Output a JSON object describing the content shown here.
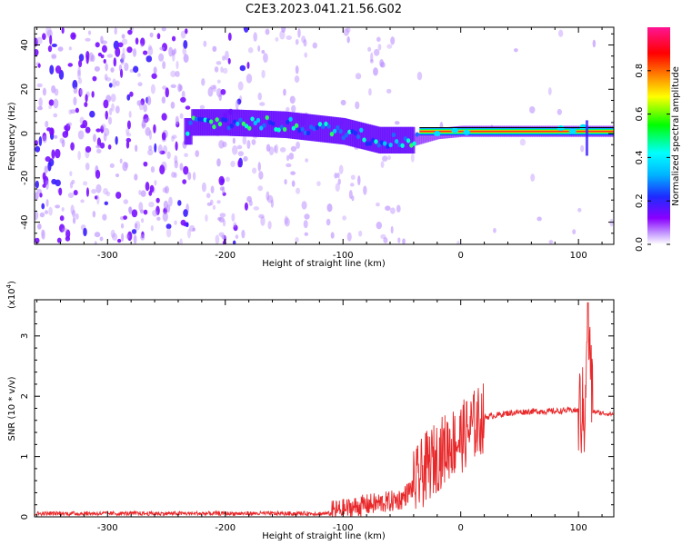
{
  "title": "C2E3.2023.041.21.56.G02",
  "colors": {
    "snr_line": "#e8282a",
    "frame": "#000000"
  },
  "chart_data": [
    {
      "type": "heatmap",
      "xlabel": "Height of straight line (km)",
      "ylabel": "Frequency (Hz)",
      "xlim": [
        -362,
        130
      ],
      "ylim": [
        -50,
        48
      ],
      "xticks": [
        -300,
        -200,
        -100,
        0,
        100
      ],
      "yticks": [
        -40,
        -20,
        0,
        20,
        40
      ],
      "colorbar": {
        "label": "Normalized spectral amplitude",
        "range": [
          0,
          1
        ],
        "ticks": [
          "0.0",
          "0.2",
          "0.4",
          "0.6",
          "0.8"
        ],
        "colormap": [
          "#ffffff",
          "#8a00ff",
          "#1d2bff",
          "#00ffff",
          "#00ff00",
          "#ffff00",
          "#ff8000",
          "#ff0000",
          "#ff1493"
        ]
      },
      "ridge": [
        {
          "x": -230,
          "f": 5
        },
        {
          "x": -200,
          "f": 5
        },
        {
          "x": -150,
          "f": 4
        },
        {
          "x": -100,
          "f": 1
        },
        {
          "x": -70,
          "f": -3
        },
        {
          "x": -40,
          "f": -3
        },
        {
          "x": -20,
          "f": 0
        },
        {
          "x": 0,
          "f": 1
        },
        {
          "x": 130,
          "f": 1
        }
      ]
    },
    {
      "type": "line",
      "xlabel": "Height of straight line (km)",
      "ylabel": "SNR (10 * v/v)",
      "scale_note": "(x10",
      "scale_exp": "4",
      "scale_close": ")",
      "xlim": [
        -362,
        130
      ],
      "ylim": [
        0,
        3.6
      ],
      "xticks": [
        -300,
        -200,
        -100,
        0,
        100
      ],
      "yticks": [
        0,
        1,
        2,
        3
      ],
      "series": [
        {
          "x": [
            -362,
            -300,
            -250,
            -200,
            -190,
            -150,
            -120,
            -100,
            -80,
            -60,
            -50,
            -40,
            -30,
            -20,
            -10,
            0,
            10,
            20,
            40,
            60,
            80,
            95,
            100,
            105,
            108,
            112,
            120,
            130
          ],
          "y": [
            0.03,
            0.04,
            0.03,
            0.05,
            0.05,
            0.04,
            0.06,
            0.12,
            0.2,
            0.25,
            0.3,
            0.5,
            0.8,
            1.0,
            1.2,
            1.3,
            1.5,
            1.65,
            1.72,
            1.75,
            1.75,
            1.77,
            1.76,
            1.7,
            3.5,
            1.75,
            1.72,
            1.7
          ]
        }
      ]
    }
  ]
}
